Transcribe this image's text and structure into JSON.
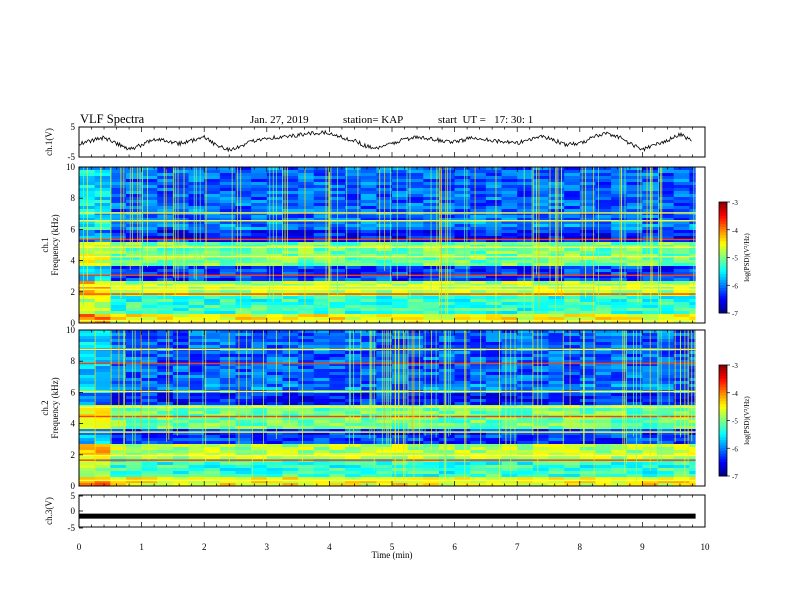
{
  "header": {
    "title": "VLF Spectra",
    "date": "Jan. 27, 2019",
    "station": "station= KAP",
    "start": "start  UT =   17: 30: 1"
  },
  "colors": {
    "colormap": [
      "#000080",
      "#0000ff",
      "#0080ff",
      "#00ffff",
      "#80ff80",
      "#ffff00",
      "#ff8000",
      "#ff0000",
      "#800000"
    ]
  },
  "chart_data": [
    {
      "type": "line",
      "name": "ch1_waveform",
      "ylabel": "ch.1(V)",
      "ylim": [
        -5,
        5
      ],
      "yticks": [
        "5",
        "-5"
      ],
      "xlim": [
        0,
        10
      ],
      "x": [
        0,
        0.2,
        0.4,
        0.6,
        0.8,
        1.0,
        1.2,
        1.4,
        1.6,
        1.8,
        2.0,
        2.2,
        2.4,
        2.6,
        2.8,
        3.0,
        3.2,
        3.4,
        3.6,
        3.8,
        4.0,
        4.2,
        4.4,
        4.6,
        4.8,
        5.0,
        5.2,
        5.4,
        5.6,
        5.8,
        6.0,
        6.2,
        6.4,
        6.6,
        6.8,
        7.0,
        7.2,
        7.4,
        7.6,
        7.8,
        8.0,
        8.2,
        8.4,
        8.6,
        8.8,
        9.0,
        9.2,
        9.4,
        9.6,
        9.8
      ],
      "y": [
        -0.5,
        0.5,
        1.5,
        -0.5,
        -2.5,
        -1.0,
        1.0,
        0.5,
        -0.5,
        0.5,
        1.5,
        -1.0,
        -2.5,
        -1.5,
        0.5,
        1.5,
        1.5,
        2.0,
        2.5,
        3.0,
        3.0,
        1.5,
        0.5,
        -1.5,
        -2.0,
        -0.5,
        1.0,
        1.5,
        1.0,
        0.5,
        0.0,
        1.0,
        1.5,
        0.5,
        0.0,
        -0.5,
        1.0,
        2.0,
        0.5,
        -1.0,
        -0.5,
        1.5,
        3.0,
        2.0,
        -0.5,
        -2.5,
        -1.0,
        0.5,
        2.5,
        0.5
      ]
    },
    {
      "type": "heatmap",
      "name": "ch1_spectrogram",
      "ylabel": "ch.1",
      "ylabel2": "Frequency  (kHz)",
      "ylim": [
        0,
        10
      ],
      "yticks": [
        "0",
        "2",
        "4",
        "6",
        "8",
        "10"
      ],
      "xlim": [
        0,
        10
      ],
      "colorbar": {
        "label": "log(PSD)(V²/Hz)",
        "min": -7,
        "max": -3,
        "ticks": [
          "-3",
          "-4",
          "-5",
          "-6",
          "-7"
        ]
      }
    },
    {
      "type": "heatmap",
      "name": "ch2_spectrogram",
      "ylabel": "ch.2",
      "ylabel2": "Frequency  (kHz)",
      "ylim": [
        0,
        10
      ],
      "yticks": [
        "0",
        "2",
        "4",
        "6",
        "8",
        "10"
      ],
      "xlim": [
        0,
        10
      ],
      "colorbar": {
        "label": "log(PSD)(V²/Hz)",
        "min": -7,
        "max": -3,
        "ticks": [
          "-3",
          "-4",
          "-5",
          "-6",
          "-7"
        ]
      }
    },
    {
      "type": "line",
      "name": "ch3_waveform",
      "ylabel": "ch.3(V)",
      "ylim": [
        -5,
        5
      ],
      "yticks": [
        "5",
        "0",
        "-5"
      ],
      "xlim": [
        0,
        10
      ],
      "xticks": [
        "0",
        "1",
        "2",
        "3",
        "4",
        "5",
        "6",
        "7",
        "8",
        "9",
        "10"
      ],
      "xlabel": "Time  (min)",
      "x": [
        0,
        9.85
      ],
      "y": [
        -1.6,
        -1.6
      ]
    }
  ]
}
